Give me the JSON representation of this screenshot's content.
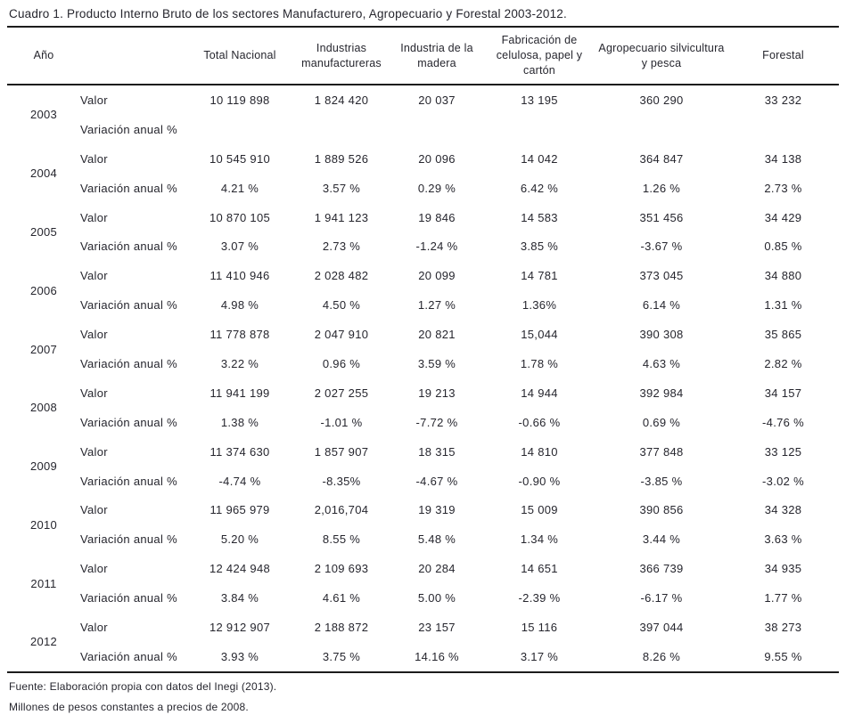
{
  "page": {
    "title": "Cuadro 1. Producto Interno Bruto de los sectores Manufacturero, Agropecuario y Forestal 2003-2012.",
    "footer_source": "Fuente: Elaboración propia con datos del Inegi (2013).",
    "footer_units": "Millones de pesos constantes a precios de 2008."
  },
  "table": {
    "headers": {
      "ano": "Año",
      "row_label": "",
      "total_nacional": "Total Nacional",
      "industrias_manufactureras": "Industrias manufactureras",
      "industria_madera": "Industria de la madera",
      "fabricacion_celulosa": "Fabricación de celulosa, papel y cartón",
      "agropecuario": "Agropecuario silvicultura y pesca",
      "forestal": "Forestal"
    },
    "row_labels": {
      "valor": "Valor",
      "variacion": "Variación anual %"
    },
    "years": [
      {
        "year": "2003",
        "valor": [
          "10 119 898",
          "1 824 420",
          "20 037",
          "13 195",
          "360 290",
          "33 232"
        ],
        "variacion": [
          "",
          "",
          "",
          "",
          "",
          ""
        ]
      },
      {
        "year": "2004",
        "valor": [
          "10 545 910",
          "1 889 526",
          "20 096",
          "14 042",
          "364 847",
          "34 138"
        ],
        "variacion": [
          "4.21 %",
          "3.57 %",
          "0.29 %",
          "6.42 %",
          "1.26 %",
          "2.73 %"
        ]
      },
      {
        "year": "2005",
        "valor": [
          "10 870 105",
          "1 941 123",
          "19 846",
          "14 583",
          "351 456",
          "34 429"
        ],
        "variacion": [
          "3.07 %",
          "2.73 %",
          "-1.24 %",
          "3.85 %",
          "-3.67 %",
          "0.85 %"
        ]
      },
      {
        "year": "2006",
        "valor": [
          "11 410 946",
          "2 028 482",
          "20 099",
          "14 781",
          "373 045",
          "34 880"
        ],
        "variacion": [
          "4.98 %",
          "4.50 %",
          "1.27 %",
          "1.36%",
          "6.14 %",
          "1.31 %"
        ]
      },
      {
        "year": "2007",
        "valor": [
          "11 778 878",
          "2 047 910",
          "20 821",
          "15,044",
          "390 308",
          "35 865"
        ],
        "variacion": [
          "3.22 %",
          "0.96 %",
          "3.59 %",
          "1.78 %",
          "4.63 %",
          "2.82 %"
        ]
      },
      {
        "year": "2008",
        "valor": [
          "11 941 199",
          "2 027 255",
          "19 213",
          "14 944",
          "392 984",
          "34 157"
        ],
        "variacion": [
          "1.38 %",
          "-1.01 %",
          "-7.72 %",
          "-0.66 %",
          "0.69 %",
          "-4.76 %"
        ]
      },
      {
        "year": "2009",
        "valor": [
          "11 374 630",
          "1 857 907",
          "18 315",
          "14 810",
          "377 848",
          "33 125"
        ],
        "variacion": [
          "-4.74 %",
          "-8.35%",
          "-4.67 %",
          "-0.90 %",
          "-3.85 %",
          "-3.02 %"
        ]
      },
      {
        "year": "2010",
        "valor": [
          "11 965 979",
          "2,016,704",
          "19 319",
          "15 009",
          "390 856",
          "34 328"
        ],
        "variacion": [
          "5.20 %",
          "8.55 %",
          "5.48 %",
          "1.34 %",
          "3.44 %",
          "3.63 %"
        ]
      },
      {
        "year": "2011",
        "valor": [
          "12 424 948",
          "2 109 693",
          "20 284",
          "14 651",
          "366 739",
          "34 935"
        ],
        "variacion": [
          "3.84 %",
          "4.61 %",
          "5.00 %",
          "-2.39 %",
          "-6.17 %",
          "1.77 %"
        ]
      },
      {
        "year": "2012",
        "valor": [
          "12 912 907",
          "2 188 872",
          "23 157",
          "15 116",
          "397 044",
          "38 273"
        ],
        "variacion": [
          "3.93 %",
          "3.75 %",
          "14.16 %",
          "3.17 %",
          "8.26 %",
          "9.55 %"
        ]
      }
    ]
  },
  "colors": {
    "text": "#26262e",
    "rule": "#1c1c1c",
    "background": "#ffffff"
  }
}
